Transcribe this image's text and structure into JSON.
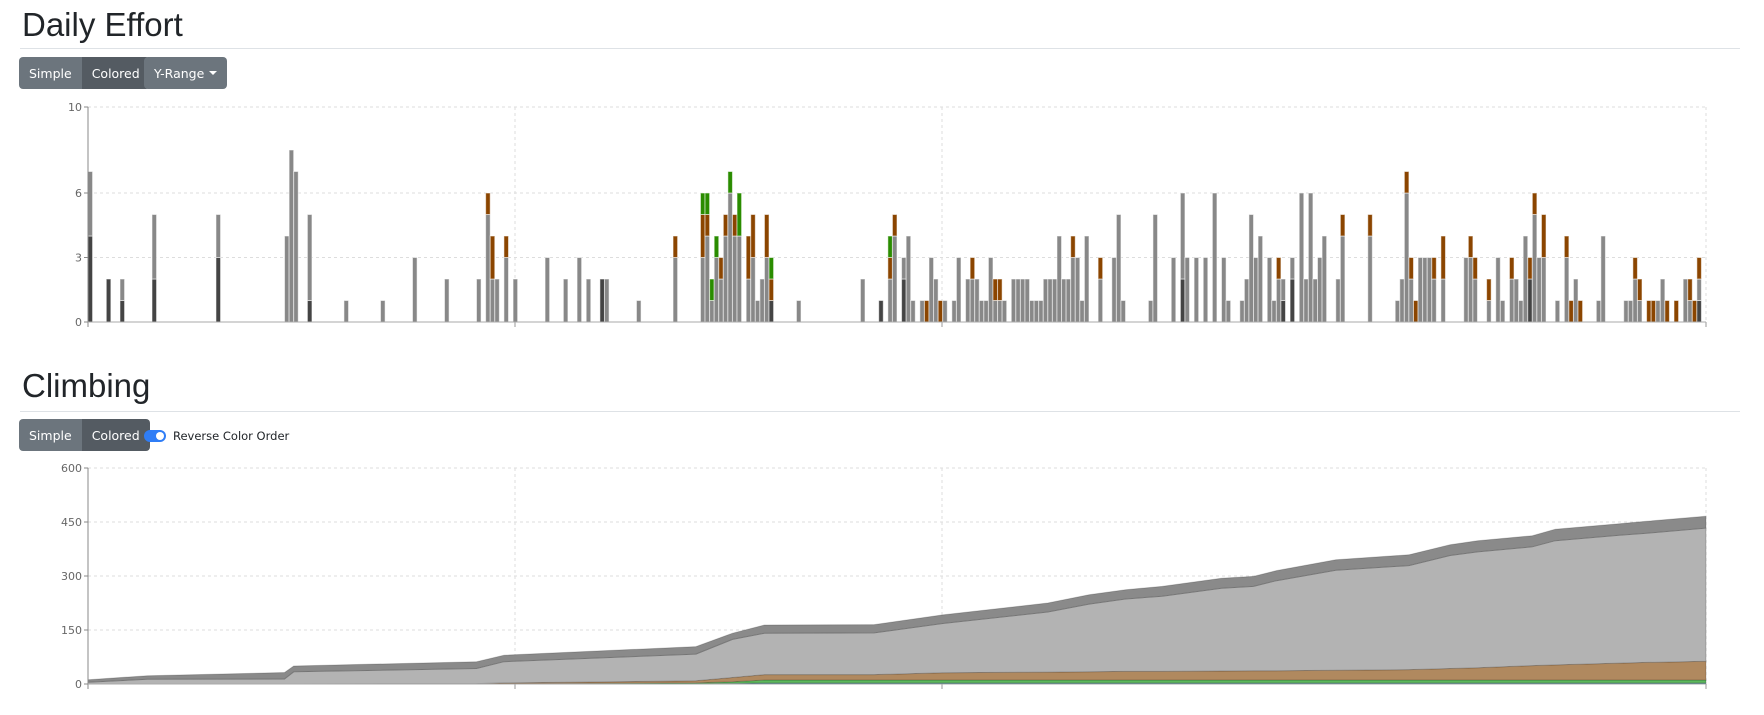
{
  "daily_effort": {
    "title": "Daily Effort",
    "buttons": {
      "simple": "Simple",
      "colored": "Colored",
      "y_range": "Y-Range"
    },
    "active_mode": "Colored"
  },
  "climbing": {
    "title": "Climbing",
    "buttons": {
      "simple": "Simple",
      "colored": "Colored"
    },
    "active_mode": "Colored",
    "toggle": {
      "label": "Reverse Color Order",
      "checked": true
    }
  },
  "colors": {
    "dark": "#444444",
    "gray": "#888888",
    "brown": "#8b4500",
    "green": "#2a8c00",
    "area_teal": "#2f8f8a",
    "area_green": "#5bb85b",
    "area_brown": "#b0895f",
    "area_light": "#b3b3b3",
    "area_dark": "#8a8a8a",
    "toggle": "#2f7df6"
  },
  "chart_data": [
    {
      "type": "bar",
      "stacked": true,
      "yticks": [
        "0",
        "3",
        "6",
        "10"
      ],
      "ylim": [
        0,
        10
      ],
      "xlim_days": [
        0,
        354
      ],
      "grid": true,
      "segment_order": [
        "dark",
        "gray",
        "brown",
        "green"
      ],
      "bars": [
        [
          0,
          4,
          3,
          0,
          0
        ],
        [
          4,
          2,
          0,
          0,
          0
        ],
        [
          7,
          1,
          1,
          0,
          0
        ],
        [
          14,
          2,
          3,
          0,
          0
        ],
        [
          28,
          3,
          2,
          0,
          0
        ],
        [
          43,
          0,
          4,
          0,
          0
        ],
        [
          44,
          0,
          8,
          0,
          0
        ],
        [
          45,
          0,
          7,
          0,
          0
        ],
        [
          48,
          1,
          4,
          0,
          0
        ],
        [
          56,
          0,
          1,
          0,
          0
        ],
        [
          64,
          0,
          1,
          0,
          0
        ],
        [
          71,
          0,
          3,
          0,
          0
        ],
        [
          78,
          0,
          2,
          0,
          0
        ],
        [
          85,
          0,
          2,
          0,
          0
        ],
        [
          87,
          0,
          5,
          1,
          0
        ],
        [
          88,
          0,
          2,
          2,
          0
        ],
        [
          89,
          0,
          2,
          0,
          0
        ],
        [
          91,
          0,
          3,
          1,
          0
        ],
        [
          93,
          0,
          2,
          0,
          0
        ],
        [
          100,
          0,
          3,
          0,
          0
        ],
        [
          104,
          0,
          2,
          0,
          0
        ],
        [
          107,
          0,
          3,
          0,
          0
        ],
        [
          109,
          0,
          2,
          0,
          0
        ],
        [
          112,
          2,
          0,
          0,
          0
        ],
        [
          113,
          0,
          2,
          0,
          0
        ],
        [
          120,
          0,
          1,
          0,
          0
        ],
        [
          128,
          0,
          3,
          1,
          0
        ],
        [
          134,
          0,
          3,
          2,
          1
        ],
        [
          135,
          0,
          4,
          1,
          1
        ],
        [
          136,
          0,
          1,
          0,
          1
        ],
        [
          137,
          0,
          3,
          0,
          1
        ],
        [
          138,
          0,
          2,
          1,
          0
        ],
        [
          139,
          0,
          4,
          1,
          0
        ],
        [
          140,
          0,
          6,
          0,
          1
        ],
        [
          141,
          0,
          4,
          1,
          0
        ],
        [
          142,
          0,
          4,
          0,
          2
        ],
        [
          144,
          0,
          2,
          2,
          0
        ],
        [
          145,
          0,
          3,
          2,
          0
        ],
        [
          146,
          0,
          1,
          0,
          0
        ],
        [
          147,
          0,
          2,
          0,
          0
        ],
        [
          148,
          0,
          3,
          2,
          0
        ],
        [
          149,
          1,
          0,
          1,
          1
        ],
        [
          155,
          0,
          1,
          0,
          0
        ],
        [
          169,
          0,
          2,
          0,
          0
        ],
        [
          173,
          1,
          0,
          0,
          0
        ],
        [
          175,
          0,
          2,
          1,
          1
        ],
        [
          176,
          0,
          4,
          1,
          0
        ],
        [
          178,
          2,
          1,
          0,
          0
        ],
        [
          179,
          0,
          4,
          0,
          0
        ],
        [
          180,
          0,
          1,
          0,
          0
        ],
        [
          182,
          0,
          1,
          0,
          0
        ],
        [
          183,
          0,
          0,
          1,
          0
        ],
        [
          184,
          0,
          3,
          0,
          0
        ],
        [
          185,
          0,
          2,
          0,
          0
        ],
        [
          186,
          0,
          0,
          1,
          0
        ],
        [
          187,
          0,
          1,
          0,
          0
        ],
        [
          189,
          0,
          1,
          0,
          0
        ],
        [
          190,
          0,
          3,
          0,
          0
        ],
        [
          192,
          0,
          2,
          0,
          0
        ],
        [
          193,
          0,
          2,
          1,
          0
        ],
        [
          194,
          0,
          2,
          0,
          0
        ],
        [
          195,
          0,
          1,
          0,
          0
        ],
        [
          196,
          0,
          1,
          0,
          0
        ],
        [
          197,
          0,
          3,
          0,
          0
        ],
        [
          198,
          0,
          1,
          1,
          0
        ],
        [
          199,
          0,
          1,
          1,
          0
        ],
        [
          200,
          0,
          1,
          0,
          0
        ],
        [
          202,
          0,
          2,
          0,
          0
        ],
        [
          203,
          0,
          2,
          0,
          0
        ],
        [
          204,
          0,
          2,
          0,
          0
        ],
        [
          205,
          0,
          2,
          0,
          0
        ],
        [
          206,
          0,
          1,
          0,
          0
        ],
        [
          207,
          0,
          1,
          0,
          0
        ],
        [
          208,
          0,
          1,
          0,
          0
        ],
        [
          209,
          0,
          2,
          0,
          0
        ],
        [
          210,
          0,
          2,
          0,
          0
        ],
        [
          211,
          0,
          2,
          0,
          0
        ],
        [
          212,
          0,
          4,
          0,
          0
        ],
        [
          213,
          0,
          2,
          0,
          0
        ],
        [
          214,
          0,
          2,
          0,
          0
        ],
        [
          215,
          0,
          3,
          1,
          0
        ],
        [
          216,
          0,
          3,
          0,
          0
        ],
        [
          217,
          0,
          1,
          0,
          0
        ],
        [
          218,
          0,
          4,
          0,
          0
        ],
        [
          221,
          0,
          2,
          1,
          0
        ],
        [
          224,
          0,
          3,
          0,
          0
        ],
        [
          225,
          0,
          5,
          0,
          0
        ],
        [
          226,
          0,
          1,
          0,
          0
        ],
        [
          232,
          0,
          1,
          0,
          0
        ],
        [
          233,
          0,
          5,
          0,
          0
        ],
        [
          237,
          0,
          3,
          0,
          0
        ],
        [
          239,
          2,
          4,
          0,
          0
        ],
        [
          240,
          0,
          3,
          0,
          0
        ],
        [
          242,
          0,
          3,
          0,
          0
        ],
        [
          244,
          0,
          3,
          0,
          0
        ],
        [
          246,
          0,
          6,
          0,
          0
        ],
        [
          248,
          0,
          3,
          0,
          0
        ],
        [
          249,
          0,
          1,
          0,
          0
        ],
        [
          252,
          0,
          1,
          0,
          0
        ],
        [
          253,
          0,
          2,
          0,
          0
        ],
        [
          254,
          0,
          5,
          0,
          0
        ],
        [
          255,
          0,
          3,
          0,
          0
        ],
        [
          256,
          0,
          4,
          0,
          0
        ],
        [
          258,
          0,
          3,
          0,
          0
        ],
        [
          259,
          0,
          1,
          0,
          0
        ],
        [
          260,
          0,
          2,
          1,
          0
        ],
        [
          261,
          1,
          1,
          0,
          0
        ],
        [
          263,
          2,
          1,
          0,
          0
        ],
        [
          265,
          0,
          6,
          0,
          0
        ],
        [
          266,
          0,
          2,
          0,
          0
        ],
        [
          267,
          0,
          6,
          0,
          0
        ],
        [
          268,
          0,
          2,
          0,
          0
        ],
        [
          269,
          0,
          3,
          0,
          0
        ],
        [
          270,
          0,
          4,
          0,
          0
        ],
        [
          273,
          0,
          2,
          0,
          0
        ],
        [
          274,
          0,
          4,
          1,
          0
        ],
        [
          280,
          0,
          4,
          1,
          0
        ],
        [
          286,
          0,
          1,
          0,
          0
        ],
        [
          287,
          0,
          2,
          0,
          0
        ],
        [
          288,
          0,
          6,
          1,
          0
        ],
        [
          289,
          0,
          2,
          1,
          0
        ],
        [
          290,
          0,
          0,
          1,
          0
        ],
        [
          291,
          0,
          3,
          0,
          0
        ],
        [
          292,
          0,
          3,
          0,
          0
        ],
        [
          293,
          0,
          3,
          0,
          0
        ],
        [
          294,
          0,
          2,
          1,
          0
        ],
        [
          296,
          0,
          2,
          2,
          0
        ],
        [
          301,
          0,
          3,
          0,
          0
        ],
        [
          302,
          0,
          3,
          1,
          0
        ],
        [
          303,
          0,
          2,
          1,
          0
        ],
        [
          306,
          0,
          1,
          1,
          0
        ],
        [
          308,
          0,
          3,
          0,
          0
        ],
        [
          309,
          0,
          1,
          0,
          0
        ],
        [
          311,
          0,
          2,
          1,
          0
        ],
        [
          312,
          0,
          2,
          0,
          0
        ],
        [
          313,
          0,
          1,
          0,
          0
        ],
        [
          314,
          0,
          4,
          0,
          0
        ],
        [
          315,
          2,
          0,
          1,
          0
        ],
        [
          316,
          0,
          5,
          1,
          0
        ],
        [
          317,
          0,
          3,
          0,
          0
        ],
        [
          318,
          0,
          3,
          2,
          0
        ],
        [
          321,
          0,
          1,
          0,
          0
        ],
        [
          323,
          0,
          3,
          1,
          0
        ],
        [
          324,
          0,
          0,
          1,
          0
        ],
        [
          325,
          0,
          2,
          0,
          0
        ],
        [
          326,
          0,
          0,
          1,
          0
        ],
        [
          330,
          0,
          1,
          0,
          0
        ],
        [
          331,
          0,
          4,
          0,
          0
        ],
        [
          336,
          0,
          1,
          0,
          0
        ],
        [
          337,
          0,
          1,
          0,
          0
        ],
        [
          338,
          0,
          2,
          1,
          0
        ],
        [
          339,
          0,
          1,
          1,
          0
        ],
        [
          341,
          0,
          0,
          1,
          0
        ],
        [
          342,
          0,
          0,
          1,
          0
        ],
        [
          343,
          0,
          1,
          0,
          0
        ],
        [
          344,
          0,
          2,
          0,
          0
        ],
        [
          345,
          0,
          0,
          1,
          0
        ],
        [
          347,
          0,
          0,
          1,
          0
        ],
        [
          349,
          0,
          2,
          0,
          0
        ],
        [
          350,
          0,
          1,
          1,
          0
        ],
        [
          351,
          0,
          0,
          1,
          0
        ],
        [
          352,
          1,
          1,
          1,
          0
        ]
      ]
    },
    {
      "type": "area",
      "stacked": true,
      "yticks": [
        "0",
        "150",
        "300",
        "450",
        "600"
      ],
      "ylim": [
        0,
        600
      ],
      "xlim_days": [
        0,
        354
      ],
      "grid": true,
      "x_days": [
        0,
        13,
        43,
        45,
        85,
        91,
        133,
        141,
        148,
        172,
        187,
        210,
        219,
        227,
        235,
        248,
        255,
        260,
        273,
        289,
        298,
        304,
        316,
        321,
        335,
        341,
        354
      ],
      "series": [
        {
          "color_key": "area_teal",
          "values": [
            0,
            0,
            0,
            0,
            0,
            0,
            1,
            2,
            3,
            3,
            3,
            3,
            3,
            3,
            3,
            3,
            3,
            3,
            3,
            3,
            3,
            3,
            3,
            3,
            3,
            3,
            3
          ]
        },
        {
          "color_key": "area_green",
          "values": [
            0,
            0,
            0,
            0,
            1,
            1,
            2,
            4,
            8,
            8,
            8,
            8,
            8,
            8,
            8,
            8,
            8,
            8,
            8,
            8,
            8,
            8,
            8,
            8,
            8,
            8,
            8
          ]
        },
        {
          "color_key": "area_brown",
          "values": [
            0,
            0,
            0,
            0,
            0,
            2,
            6,
            12,
            15,
            15,
            20,
            22,
            23,
            24,
            24,
            25,
            26,
            26,
            27,
            29,
            32,
            34,
            40,
            42,
            47,
            49,
            52
          ]
        },
        {
          "color_key": "area_light",
          "values": [
            5,
            13,
            14,
            34,
            42,
            59,
            74,
            106,
            115,
            116,
            137,
            167,
            188,
            201,
            209,
            230,
            234,
            250,
            278,
            289,
            314,
            322,
            330,
            345,
            355,
            359,
            370
          ]
        },
        {
          "color_key": "area_dark",
          "values": [
            7,
            10,
            18,
            16,
            19,
            18,
            21,
            17,
            23,
            23,
            24,
            25,
            26,
            26,
            27,
            28,
            28,
            28,
            29,
            30,
            30,
            31,
            31,
            32,
            32,
            33,
            33
          ]
        }
      ]
    }
  ]
}
